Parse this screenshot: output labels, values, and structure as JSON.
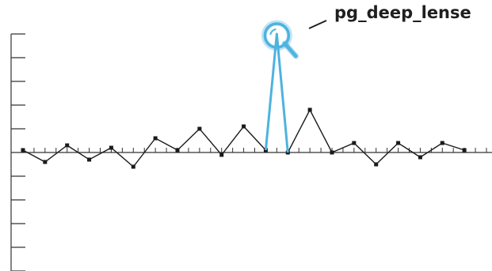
{
  "chart_data": {
    "type": "line",
    "title": "",
    "xlabel": "",
    "ylabel": "",
    "grid": false,
    "legend": "none",
    "x": [
      0,
      1,
      2,
      3,
      4,
      5,
      6,
      7,
      8,
      9,
      10,
      11,
      12,
      13,
      14,
      15,
      16,
      17,
      18,
      19,
      20,
      21
    ],
    "y": [
      0.1,
      -0.4,
      0.3,
      -0.3,
      0.2,
      -0.6,
      0.6,
      0.1,
      1.0,
      -0.1,
      1.1,
      0.1,
      0.0,
      1.8,
      0.0,
      0.4,
      -0.5,
      0.4,
      -0.2,
      0.4,
      0.1,
      null
    ],
    "xlim": [
      0,
      21
    ],
    "ylim": [
      -5,
      5
    ],
    "highlight": {
      "name": "pg_deep_lense",
      "icon": "magnifier-icon",
      "color": "#4DB3DF",
      "peak_y": 5.0,
      "from_index": 11,
      "to_index": 12
    },
    "line_color": "#1a1a1a"
  }
}
